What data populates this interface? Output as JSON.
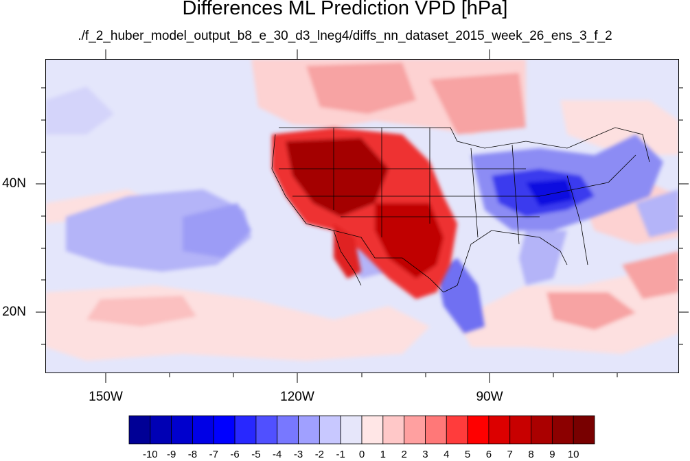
{
  "title": "Differences ML Prediction VPD [hPa]",
  "subtitle": "./f_2_huber_model_output_b8_e_30_d3_lneg4/diffs_nn_dataset_2015_week_26_ens_3_f_2",
  "map": {
    "lat_labels": [
      "40N",
      "20N"
    ],
    "lon_labels": [
      "150W",
      "120W",
      "90W"
    ],
    "colors": {
      "ocean_base": "#e4e6fb",
      "pos_light": "#fde4e4",
      "pos_mid": "#f7a3a3",
      "pos_strong": "#ee3333",
      "pos_max": "#960000",
      "neg_light": "#b4b4f8",
      "neg_mid": "#5c5cf2",
      "neg_strong": "#1010e0",
      "boundary_line": "#000000"
    }
  },
  "colorbar": {
    "labels": [
      "-10",
      "-9",
      "-8",
      "-7",
      "-6",
      "-5",
      "-4",
      "-3",
      "-2",
      "-1",
      "0",
      "1",
      "2",
      "3",
      "4",
      "5",
      "6",
      "7",
      "8",
      "9",
      "10"
    ],
    "colors": [
      "#000096",
      "#0000b4",
      "#0000cd",
      "#0000e6",
      "#0000ff",
      "#2828ff",
      "#5050ff",
      "#7878ff",
      "#a0a0ff",
      "#c8c8ff",
      "#e6e6fa",
      "#ffe6e6",
      "#ffc8c8",
      "#ffa0a0",
      "#ff7878",
      "#ff3c3c",
      "#ff0000",
      "#dc0000",
      "#c80000",
      "#aa0000",
      "#8c0000",
      "#780000"
    ]
  }
}
